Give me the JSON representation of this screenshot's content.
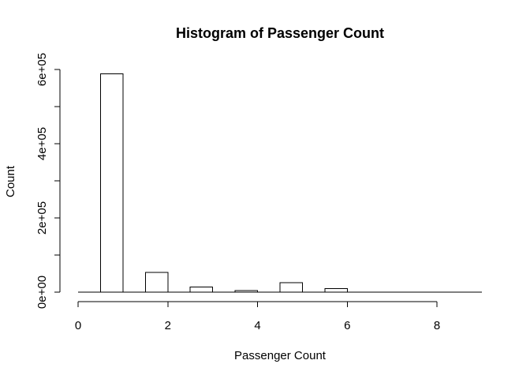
{
  "chart_data": {
    "type": "bar",
    "title": "Histogram of Passenger Count",
    "xlabel": "Passenger Count",
    "ylabel": "Count",
    "bins": [
      {
        "start": 0.5,
        "end": 1.0,
        "count": 588000
      },
      {
        "start": 1.0,
        "end": 1.5,
        "count": 0
      },
      {
        "start": 1.5,
        "end": 2.0,
        "count": 53000
      },
      {
        "start": 2.0,
        "end": 2.5,
        "count": 0
      },
      {
        "start": 2.5,
        "end": 3.0,
        "count": 14000
      },
      {
        "start": 3.0,
        "end": 3.5,
        "count": 0
      },
      {
        "start": 3.5,
        "end": 4.0,
        "count": 4000
      },
      {
        "start": 4.0,
        "end": 4.5,
        "count": 0
      },
      {
        "start": 4.5,
        "end": 5.0,
        "count": 26000
      },
      {
        "start": 5.0,
        "end": 5.5,
        "count": 0
      },
      {
        "start": 5.5,
        "end": 6.0,
        "count": 10000
      },
      {
        "start": 6.0,
        "end": 6.5,
        "count": 0
      },
      {
        "start": 6.5,
        "end": 7.0,
        "count": 0
      },
      {
        "start": 7.0,
        "end": 7.5,
        "count": 0
      },
      {
        "start": 7.5,
        "end": 8.0,
        "count": 0
      },
      {
        "start": 8.0,
        "end": 8.5,
        "count": 0
      },
      {
        "start": 8.5,
        "end": 9.0,
        "count": 0
      }
    ],
    "baseline_range": [
      0,
      9
    ],
    "xlim": [
      0,
      9
    ],
    "ylim": [
      0,
      600000
    ],
    "x_ticks": [
      0,
      2,
      4,
      6,
      8
    ],
    "x_tick_labels": [
      "0",
      "2",
      "4",
      "6",
      "8"
    ],
    "y_ticks": [
      0,
      100000,
      200000,
      300000,
      400000,
      500000,
      600000
    ],
    "y_tick_labels": [
      "0e+00",
      "",
      "2e+05",
      "",
      "4e+05",
      "",
      "6e+05"
    ],
    "grid": false,
    "legend": "none",
    "colors": {
      "bar_fill": "#ffffff",
      "bar_stroke": "#000000"
    }
  }
}
